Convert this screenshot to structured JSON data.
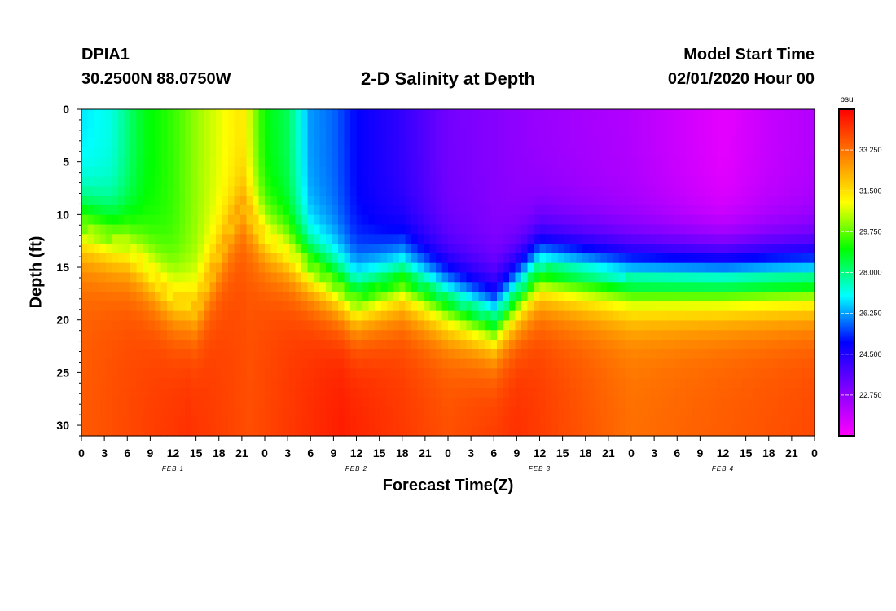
{
  "header": {
    "station": "DPIA1",
    "coords": "30.2500N 88.0750W",
    "title": "2-D Salinity at Depth",
    "model_start_label": "Model Start Time",
    "model_start_value": "02/01/2020 Hour 00"
  },
  "chart_data": {
    "type": "heatmap",
    "title": "2-D Salinity at Depth",
    "xlabel": "Forecast Time(Z)",
    "ylabel": "Depth (ft)",
    "x_ticks": [
      "0",
      "3",
      "6",
      "9",
      "12",
      "15",
      "18",
      "21",
      "0",
      "3",
      "6",
      "9",
      "12",
      "15",
      "18",
      "21",
      "0",
      "3",
      "6",
      "9",
      "12",
      "15",
      "18",
      "21",
      "0",
      "3",
      "6",
      "9",
      "12",
      "15",
      "18",
      "21",
      "0"
    ],
    "x_range_hours": [
      0,
      96
    ],
    "date_labels": [
      {
        "label": "FEB 1",
        "hour": 12
      },
      {
        "label": "FEB 2",
        "hour": 36
      },
      {
        "label": "FEB 3",
        "hour": 60
      },
      {
        "label": "FEB 4",
        "hour": 84
      }
    ],
    "y_ticks": [
      0,
      5,
      10,
      15,
      20,
      25,
      30
    ],
    "ylim": [
      0,
      31
    ],
    "y_inverted": true,
    "colorbar": {
      "unit": "psu",
      "range": [
        21.0,
        35.0
      ],
      "labels": [
        "33.250",
        "31.500",
        "29.750",
        "28.000",
        "26.250",
        "24.500",
        "22.750"
      ],
      "colors": [
        "#ff00ff",
        "#8000ff",
        "#0000ff",
        "#00ffff",
        "#00ff00",
        "#ffff00",
        "#ff8000",
        "#ff0000"
      ]
    },
    "surface_salinity": [
      {
        "hour": 0,
        "value": 26.8
      },
      {
        "hour": 4,
        "value": 27.2
      },
      {
        "hour": 8,
        "value": 28.8
      },
      {
        "hour": 12,
        "value": 29.4
      },
      {
        "hour": 16,
        "value": 30.4
      },
      {
        "hour": 21,
        "value": 31.4
      },
      {
        "hour": 24,
        "value": 29.0
      },
      {
        "hour": 27,
        "value": 28.3
      },
      {
        "hour": 30,
        "value": 26.2
      },
      {
        "hour": 33,
        "value": 25.8
      },
      {
        "hour": 36,
        "value": 25.0
      },
      {
        "hour": 42,
        "value": 24.2
      },
      {
        "hour": 48,
        "value": 23.2
      },
      {
        "hour": 60,
        "value": 22.6
      },
      {
        "hour": 72,
        "value": 22.2
      },
      {
        "hour": 84,
        "value": 21.4
      },
      {
        "hour": 90,
        "value": 21.9
      },
      {
        "hour": 96,
        "value": 22.2
      }
    ],
    "halocline_depth_ft": [
      {
        "hour": 0,
        "value": 11
      },
      {
        "hour": 6,
        "value": 13
      },
      {
        "hour": 12,
        "value": 18
      },
      {
        "hour": 15,
        "value": 19
      },
      {
        "hour": 21,
        "value": 9
      },
      {
        "hour": 24,
        "value": 12
      },
      {
        "hour": 30,
        "value": 15
      },
      {
        "hour": 36,
        "value": 18
      },
      {
        "hour": 42,
        "value": 16
      },
      {
        "hour": 48,
        "value": 18
      },
      {
        "hour": 54,
        "value": 20
      },
      {
        "hour": 60,
        "value": 15
      },
      {
        "hour": 72,
        "value": 16
      },
      {
        "hour": 84,
        "value": 16
      },
      {
        "hour": 96,
        "value": 16
      }
    ],
    "bottom_salinity": [
      {
        "hour": 0,
        "value": 33.6
      },
      {
        "hour": 14,
        "value": 34.3
      },
      {
        "hour": 22,
        "value": 33.8
      },
      {
        "hour": 34,
        "value": 34.6
      },
      {
        "hour": 48,
        "value": 33.8
      },
      {
        "hour": 57,
        "value": 34.3
      },
      {
        "hour": 72,
        "value": 33.3
      },
      {
        "hour": 96,
        "value": 33.9
      }
    ]
  }
}
